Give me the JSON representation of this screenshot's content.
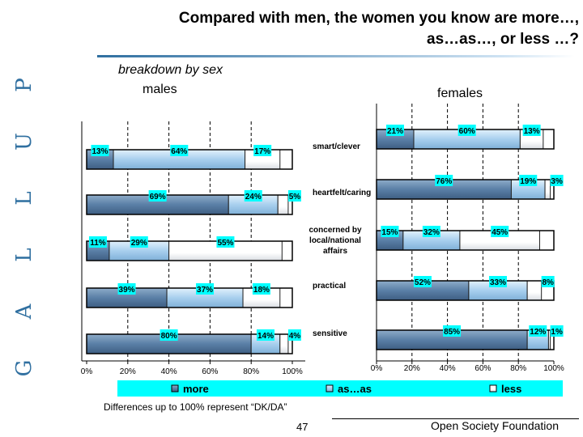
{
  "brand": "GALLUP",
  "title_lines": [
    "Compared with men, the women you know are more…,",
    "as…as…, or less …?"
  ],
  "subtitle": "breakdown by sex",
  "footnote": "Differences up to 100% represent “DK/DA”",
  "page_number": "47",
  "organization": "Open Society Foundation",
  "colors": {
    "more": "#5a7fa6",
    "asas": "#a8cfee",
    "less": "#ffffff",
    "label_box": "#00ffff",
    "legend_bg": "#00ffff"
  },
  "chart_data": {
    "type": "bar",
    "orientation": "horizontal",
    "stacked": true,
    "categories": [
      "smart/clever",
      "heartfelt/caring",
      "concerned by local/national affairs",
      "practical",
      "sensitive"
    ],
    "category_labels": [
      [
        "smart/clever"
      ],
      [
        "heartfelt/caring"
      ],
      [
        "concerned by",
        "local/national",
        "affairs"
      ],
      [
        "practical"
      ],
      [
        "sensitive"
      ]
    ],
    "xlim": [
      0,
      100
    ],
    "x_ticks": [
      "0%",
      "20%",
      "40%",
      "60%",
      "80%",
      "100%"
    ],
    "legend": {
      "position": "bottom",
      "entries": [
        "more",
        "as…as",
        "less"
      ]
    },
    "panels": [
      {
        "title": "males",
        "series": [
          {
            "name": "more",
            "values": [
              13,
              69,
              11,
              39,
              80
            ]
          },
          {
            "name": "as…as",
            "values": [
              64,
              24,
              29,
              37,
              14
            ]
          },
          {
            "name": "less",
            "values": [
              17,
              5,
              55,
              18,
              4
            ]
          }
        ]
      },
      {
        "title": "females",
        "series": [
          {
            "name": "more",
            "values": [
              21,
              76,
              15,
              52,
              85
            ]
          },
          {
            "name": "as…as",
            "values": [
              60,
              19,
              32,
              33,
              12
            ]
          },
          {
            "name": "less",
            "values": [
              13,
              3,
              45,
              8,
              1
            ]
          }
        ]
      }
    ]
  }
}
